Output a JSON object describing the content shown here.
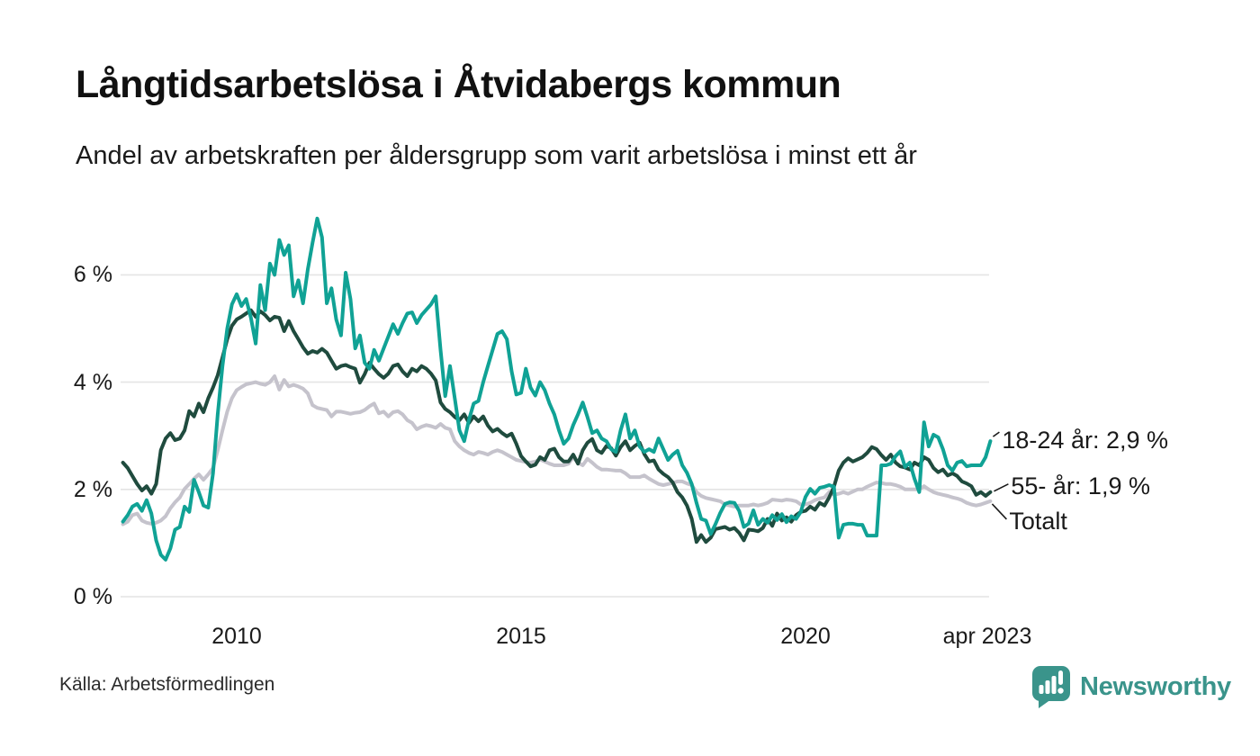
{
  "header": {
    "title": "Långtidsarbetslösa i Åtvidabergs kommun",
    "subtitle": "Andel av arbetskraften per åldersgrupp som varit arbetslösa i minst ett år"
  },
  "footer": {
    "source": "Källa: Arbetsförmedlingen",
    "brand": "Newsworthy"
  },
  "colors": {
    "series_18_24": "#10a295",
    "series_55_plus": "#1f4b3e",
    "series_total": "#c5c3cc",
    "grid": "#e4e4e4",
    "text": "#1a1a1a",
    "brand_teal": "#3a948b"
  },
  "chart_data": {
    "type": "line",
    "title": "Långtidsarbetslösa i Åtvidabergs kommun",
    "subtitle": "Andel av arbetskraften per åldersgrupp som varit arbetslösa i minst ett år",
    "x_unit": "year, monthly resolution",
    "x_start_year": 2008,
    "x_end_label": "apr 2023",
    "ylim": [
      0,
      7.3
    ],
    "grid": "horizontal",
    "legend_position": "right-end-labels",
    "y_ticks": [
      {
        "value": 0,
        "label": "0 %"
      },
      {
        "value": 2,
        "label": "2 %"
      },
      {
        "value": 4,
        "label": "4 %"
      },
      {
        "value": 6,
        "label": "6 %"
      }
    ],
    "x_ticks": [
      {
        "value": 2010,
        "label": "2010"
      },
      {
        "value": 2015,
        "label": "2015"
      },
      {
        "value": 2020,
        "label": "2020"
      },
      {
        "value": 2023.25,
        "label": "apr 2023"
      }
    ],
    "series": [
      {
        "name": "18-24 år",
        "label": "18-24 år: 2,9 %",
        "last_value": 2.9,
        "color": "#10a295",
        "values": [
          1.4,
          1.52,
          1.68,
          1.73,
          1.6,
          1.8,
          1.55,
          1.05,
          0.78,
          0.69,
          0.9,
          1.25,
          1.3,
          1.68,
          1.58,
          2.18,
          1.95,
          1.7,
          1.66,
          2.3,
          3.4,
          4.3,
          5.0,
          5.45,
          5.64,
          5.42,
          5.55,
          5.2,
          4.72,
          5.81,
          5.34,
          6.21,
          6.0,
          6.65,
          6.37,
          6.55,
          5.6,
          5.9,
          5.47,
          6.1,
          6.6,
          7.05,
          6.7,
          5.47,
          5.75,
          5.17,
          4.87,
          6.04,
          5.55,
          4.63,
          4.87,
          4.36,
          4.25,
          4.6,
          4.4,
          4.63,
          4.85,
          5.08,
          4.9,
          5.1,
          5.28,
          5.3,
          5.1,
          5.25,
          5.35,
          5.45,
          5.6,
          4.6,
          3.74,
          4.3,
          3.7,
          3.1,
          2.9,
          3.3,
          3.6,
          3.65,
          4.0,
          4.3,
          4.6,
          4.9,
          4.95,
          4.8,
          4.2,
          3.77,
          3.8,
          4.25,
          3.9,
          3.75,
          4.0,
          3.85,
          3.6,
          3.4,
          3.1,
          2.85,
          2.95,
          3.2,
          3.4,
          3.62,
          3.35,
          3.05,
          3.1,
          2.95,
          2.9,
          2.75,
          2.7,
          3.1,
          3.4,
          2.95,
          3.1,
          2.8,
          2.7,
          2.75,
          2.7,
          2.95,
          2.75,
          2.55,
          2.65,
          2.72,
          2.45,
          2.31,
          2.1,
          1.75,
          1.45,
          1.42,
          1.17,
          1.35,
          1.56,
          1.73,
          1.76,
          1.75,
          1.6,
          1.3,
          1.36,
          1.61,
          1.34,
          1.45,
          1.38,
          1.52,
          1.43,
          1.54,
          1.39,
          1.5,
          1.45,
          1.58,
          1.86,
          2.01,
          1.92,
          2.03,
          2.05,
          2.08,
          2.05,
          1.1,
          1.34,
          1.36,
          1.36,
          1.34,
          1.34,
          1.14,
          1.14,
          1.14,
          2.45,
          2.45,
          2.48,
          2.62,
          2.71,
          2.42,
          2.5,
          2.2,
          1.95,
          3.25,
          2.8,
          3.02,
          2.97,
          2.75,
          2.45,
          2.35,
          2.5,
          2.53,
          2.43,
          2.45,
          2.45,
          2.45,
          2.6,
          2.9
        ]
      },
      {
        "name": "55- år",
        "label": "55- år: 1,9 %",
        "last_value": 1.9,
        "color": "#1f4b3e",
        "values": [
          2.5,
          2.4,
          2.25,
          2.1,
          1.98,
          2.06,
          1.92,
          2.1,
          2.73,
          2.95,
          3.05,
          2.92,
          2.95,
          3.1,
          3.46,
          3.36,
          3.6,
          3.44,
          3.7,
          3.9,
          4.13,
          4.46,
          4.8,
          5.05,
          5.17,
          5.22,
          5.28,
          5.34,
          5.22,
          5.32,
          5.25,
          5.15,
          5.22,
          5.2,
          4.95,
          5.14,
          4.95,
          4.8,
          4.65,
          4.53,
          4.58,
          4.55,
          4.62,
          4.55,
          4.4,
          4.25,
          4.3,
          4.32,
          4.28,
          4.25,
          3.99,
          4.15,
          4.36,
          4.25,
          4.15,
          4.08,
          4.16,
          4.3,
          4.33,
          4.2,
          4.11,
          4.25,
          4.2,
          4.3,
          4.25,
          4.16,
          4.03,
          3.62,
          3.5,
          3.44,
          3.35,
          3.29,
          3.4,
          3.24,
          3.36,
          3.27,
          3.36,
          3.19,
          3.08,
          3.13,
          3.05,
          2.99,
          3.04,
          2.85,
          2.62,
          2.52,
          2.43,
          2.46,
          2.6,
          2.55,
          2.73,
          2.76,
          2.6,
          2.52,
          2.52,
          2.65,
          2.48,
          2.73,
          2.87,
          2.94,
          2.73,
          2.68,
          2.81,
          2.77,
          2.63,
          2.79,
          2.9,
          2.73,
          2.81,
          2.87,
          2.66,
          2.52,
          2.54,
          2.37,
          2.29,
          2.23,
          2.13,
          1.95,
          1.85,
          1.7,
          1.45,
          1.02,
          1.15,
          1.02,
          1.1,
          1.26,
          1.28,
          1.3,
          1.25,
          1.28,
          1.19,
          1.05,
          1.25,
          1.24,
          1.22,
          1.28,
          1.45,
          1.32,
          1.55,
          1.42,
          1.48,
          1.4,
          1.52,
          1.58,
          1.6,
          1.68,
          1.62,
          1.75,
          1.7,
          1.85,
          2.05,
          2.35,
          2.5,
          2.58,
          2.52,
          2.56,
          2.6,
          2.68,
          2.79,
          2.75,
          2.64,
          2.55,
          2.65,
          2.5,
          2.43,
          2.41,
          2.37,
          2.5,
          2.45,
          2.6,
          2.55,
          2.4,
          2.32,
          2.37,
          2.26,
          2.3,
          2.25,
          2.15,
          2.11,
          2.06,
          1.9,
          1.95,
          1.88,
          1.95
        ]
      },
      {
        "name": "Totalt",
        "label": "Totalt",
        "color": "#c5c3cc",
        "values": [
          1.35,
          1.4,
          1.52,
          1.55,
          1.42,
          1.38,
          1.36,
          1.38,
          1.42,
          1.5,
          1.65,
          1.76,
          1.85,
          2.01,
          2.1,
          2.2,
          2.28,
          2.18,
          2.28,
          2.4,
          2.73,
          3.1,
          3.45,
          3.7,
          3.85,
          3.91,
          3.96,
          3.98,
          4.0,
          3.97,
          3.95,
          4.0,
          4.11,
          3.86,
          4.04,
          3.92,
          3.95,
          3.92,
          3.88,
          3.79,
          3.57,
          3.52,
          3.5,
          3.48,
          3.36,
          3.45,
          3.45,
          3.43,
          3.41,
          3.43,
          3.44,
          3.48,
          3.55,
          3.6,
          3.42,
          3.45,
          3.36,
          3.44,
          3.46,
          3.4,
          3.29,
          3.24,
          3.12,
          3.17,
          3.2,
          3.18,
          3.15,
          3.22,
          3.15,
          3.12,
          2.9,
          2.8,
          2.73,
          2.68,
          2.65,
          2.7,
          2.68,
          2.65,
          2.7,
          2.73,
          2.7,
          2.65,
          2.6,
          2.55,
          2.53,
          2.51,
          2.5,
          2.52,
          2.56,
          2.52,
          2.48,
          2.45,
          2.45,
          2.45,
          2.48,
          2.6,
          2.5,
          2.45,
          2.57,
          2.5,
          2.42,
          2.37,
          2.37,
          2.36,
          2.35,
          2.35,
          2.3,
          2.23,
          2.23,
          2.23,
          2.26,
          2.2,
          2.15,
          2.1,
          2.08,
          2.1,
          2.12,
          2.15,
          2.15,
          2.11,
          2.08,
          1.95,
          1.88,
          1.84,
          1.82,
          1.8,
          1.78,
          1.72,
          1.7,
          1.68,
          1.7,
          1.7,
          1.7,
          1.72,
          1.7,
          1.72,
          1.75,
          1.81,
          1.8,
          1.79,
          1.81,
          1.8,
          1.78,
          1.72,
          1.72,
          1.75,
          1.8,
          1.83,
          1.85,
          1.95,
          1.9,
          1.92,
          1.95,
          1.92,
          1.96,
          2.0,
          2.0,
          2.05,
          2.09,
          2.13,
          2.12,
          2.1,
          2.1,
          2.08,
          2.05,
          2.0,
          2.0,
          2.0,
          2.0,
          2.06,
          2.0,
          1.95,
          1.92,
          1.9,
          1.88,
          1.85,
          1.83,
          1.8,
          1.75,
          1.72,
          1.7,
          1.72,
          1.75,
          1.78
        ]
      }
    ]
  }
}
